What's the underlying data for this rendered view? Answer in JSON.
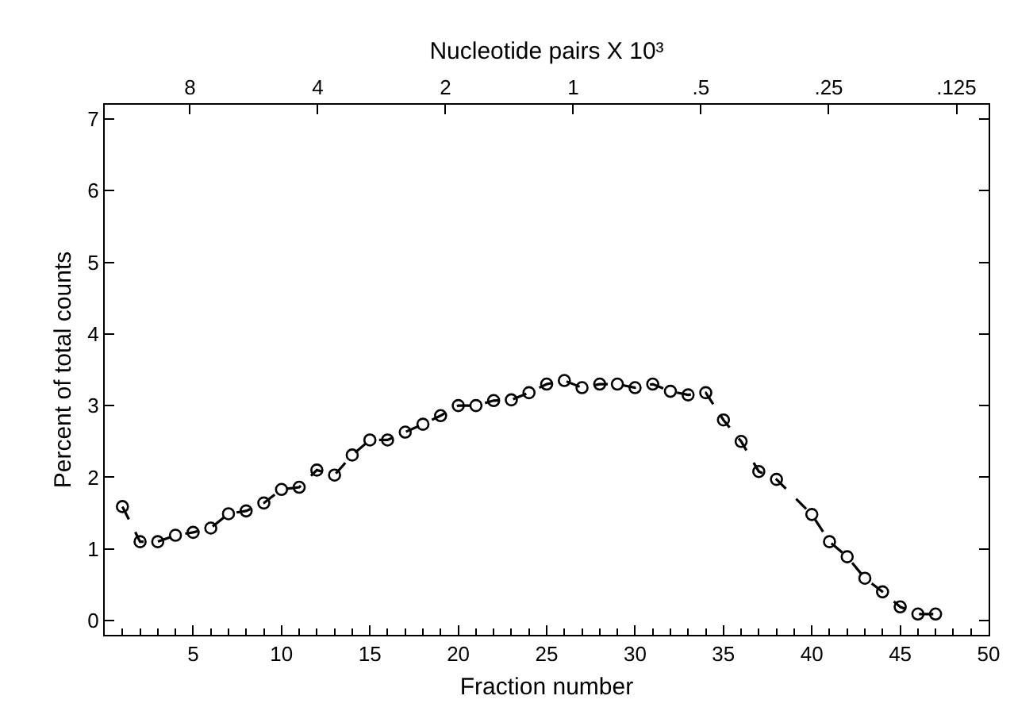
{
  "chart_data": {
    "type": "line",
    "xlabel": "Fraction number",
    "ylabel": "Percent of total counts",
    "x2label": "Nucleotide pairs X 10³",
    "x": [
      1,
      2,
      3,
      4,
      5,
      6,
      7,
      8,
      9,
      10,
      11,
      12,
      13,
      14,
      15,
      16,
      17,
      18,
      19,
      20,
      21,
      22,
      23,
      24,
      25,
      26,
      27,
      28,
      29,
      30,
      31,
      32,
      33,
      34,
      35,
      36,
      37,
      38,
      40,
      41,
      42,
      43,
      44,
      45,
      46,
      47
    ],
    "series": [
      {
        "color": "#000000",
        "values": [
          1.59,
          1.1,
          1.1,
          1.19,
          1.23,
          1.29,
          1.49,
          1.53,
          1.64,
          1.83,
          1.86,
          2.1,
          2.03,
          2.31,
          2.52,
          2.52,
          2.63,
          2.74,
          2.86,
          3.0,
          3.0,
          3.07,
          3.08,
          3.18,
          3.3,
          3.35,
          3.25,
          3.3,
          3.3,
          3.25,
          3.3,
          3.2,
          3.15,
          3.18,
          2.8,
          2.5,
          2.08,
          1.97,
          1.48,
          1.1,
          0.89,
          0.59,
          0.4,
          0.19,
          0.09,
          0.09
        ]
      }
    ],
    "xlim": [
      0,
      50
    ],
    "xticks": [
      5,
      10,
      15,
      20,
      25,
      30,
      35,
      40,
      45,
      50
    ],
    "ylim": [
      -0.2,
      7.2
    ],
    "yticks": [
      0,
      1,
      2,
      3,
      4,
      5,
      6,
      7
    ],
    "x2lim": [
      12.7,
      0.105
    ],
    "x2ticks": [
      8,
      4,
      2,
      1,
      {
        "value": 0.5,
        "label": ".5"
      },
      {
        "value": 0.25,
        "label": ".25"
      },
      {
        "value": 0.125,
        "label": ".125"
      }
    ],
    "log": "x2",
    "grid": false,
    "marker": "circle",
    "line_style": "dashed"
  }
}
